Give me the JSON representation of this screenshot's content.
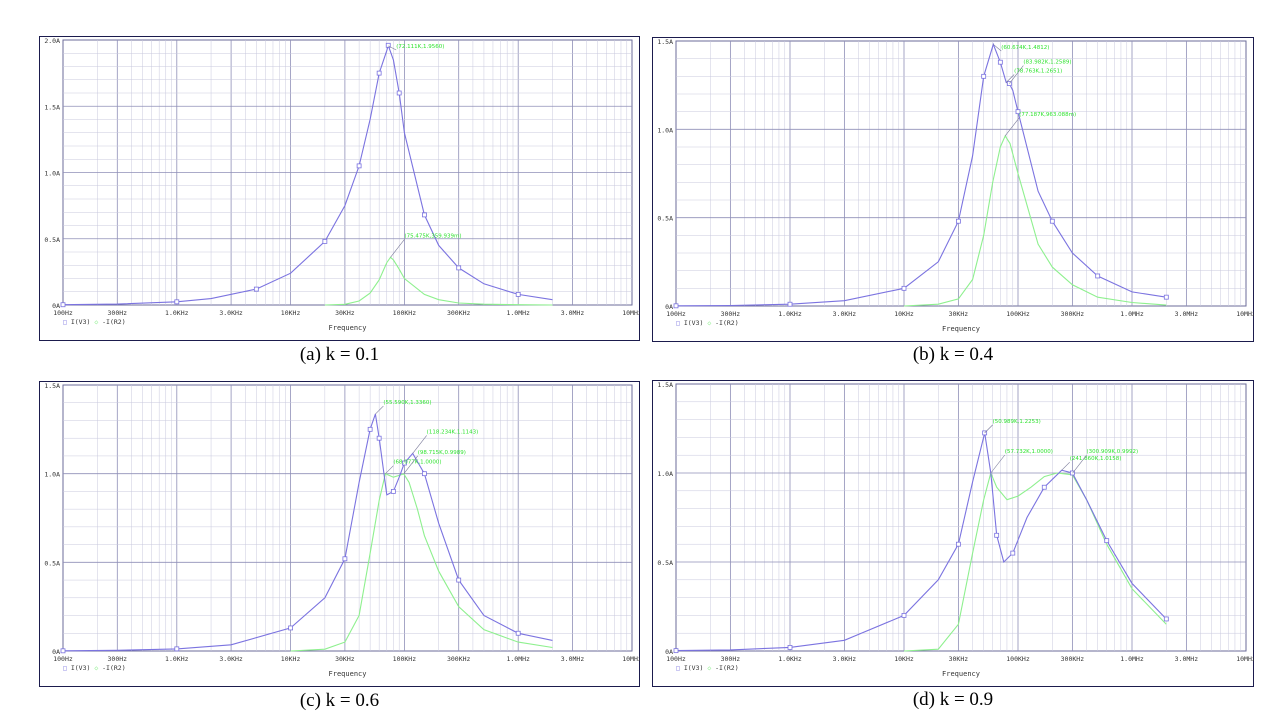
{
  "figure": {
    "freq_ticks": [
      "100Hz",
      "300Hz",
      "1.0KHz",
      "3.0KHz",
      "10KHz",
      "30KHz",
      "100KHz",
      "300KHz",
      "1.0MHz",
      "3.0MHz",
      "10MHz"
    ],
    "xlabel": "Frequency",
    "legend": [
      {
        "symbol": "□",
        "label": "I(V3)"
      },
      {
        "symbol": "◇",
        "label": "-I(R2)"
      }
    ],
    "colors": {
      "trace1": "#7b73e0",
      "trace2": "#8ef08e",
      "grid": "#8f8fb7",
      "frame": "#1b1b4d",
      "annotation": "#2fe32f",
      "axis_text": "#333333"
    }
  },
  "chart_data": [
    {
      "type": "line",
      "caption": "(a) k = 0.1",
      "x_scale": "log",
      "xlim": [
        100,
        10000000
      ],
      "ylim": [
        0,
        2.0
      ],
      "yticks": [
        0,
        0.5,
        1.0,
        1.5,
        2.0
      ],
      "ytick_labels": [
        "0A",
        "0.5A",
        "1.0A",
        "1.5A",
        "2.0A"
      ],
      "series": [
        {
          "name": "I(V3)",
          "marker": "square",
          "x": [
            100,
            300,
            1000,
            2000,
            5000,
            10000,
            20000,
            30000,
            40000,
            50000,
            60000,
            70000,
            72111,
            80000,
            90000,
            100000,
            150000,
            200000,
            300000,
            500000,
            1000000,
            2000000
          ],
          "y": [
            0.002,
            0.007,
            0.024,
            0.048,
            0.12,
            0.24,
            0.48,
            0.75,
            1.05,
            1.4,
            1.75,
            1.92,
            1.96,
            1.85,
            1.6,
            1.3,
            0.68,
            0.45,
            0.28,
            0.16,
            0.08,
            0.04
          ]
        },
        {
          "name": "-I(R2)",
          "marker": "diamond",
          "x": [
            20000,
            30000,
            40000,
            50000,
            60000,
            70000,
            75475,
            80000,
            90000,
            100000,
            150000,
            200000,
            300000,
            500000,
            1000000,
            2000000
          ],
          "y": [
            0.0,
            0.005,
            0.03,
            0.09,
            0.19,
            0.32,
            0.36,
            0.34,
            0.27,
            0.2,
            0.08,
            0.04,
            0.015,
            0.006,
            0.002,
            0.0
          ]
        }
      ],
      "annotations": [
        "(72.111K,1.9560)",
        "(75.475K,359.939m)"
      ]
    },
    {
      "type": "line",
      "caption": "(b) k = 0.4",
      "x_scale": "log",
      "xlim": [
        100,
        10000000
      ],
      "ylim": [
        0,
        1.5
      ],
      "yticks": [
        0,
        0.5,
        1.0,
        1.5
      ],
      "ytick_labels": [
        "0A",
        "0.5A",
        "1.0A",
        "1.5A"
      ],
      "series": [
        {
          "name": "I(V3)",
          "marker": "square",
          "x": [
            100,
            300,
            1000,
            3000,
            10000,
            20000,
            30000,
            40000,
            50000,
            60674,
            70000,
            78763,
            83982,
            90000,
            100000,
            150000,
            200000,
            300000,
            500000,
            1000000,
            2000000
          ],
          "y": [
            0.001,
            0.003,
            0.01,
            0.03,
            0.1,
            0.25,
            0.48,
            0.85,
            1.3,
            1.4812,
            1.38,
            1.2651,
            1.2589,
            1.22,
            1.1,
            0.65,
            0.48,
            0.3,
            0.17,
            0.08,
            0.05
          ]
        },
        {
          "name": "-I(R2)",
          "marker": "diamond",
          "x": [
            10000,
            20000,
            30000,
            40000,
            50000,
            60000,
            70000,
            77187,
            85000,
            100000,
            150000,
            200000,
            300000,
            500000,
            1000000,
            2000000
          ],
          "y": [
            0.0,
            0.01,
            0.04,
            0.15,
            0.4,
            0.7,
            0.9,
            0.963,
            0.92,
            0.75,
            0.35,
            0.22,
            0.12,
            0.05,
            0.02,
            0.005
          ]
        }
      ],
      "annotations": [
        "(60.674K,1.4812)",
        "(83.982K,1.2589)",
        "(78.763K,1.2651)",
        "(77.187K,963.088m)"
      ]
    },
    {
      "type": "line",
      "caption": "(c) k = 0.6",
      "x_scale": "log",
      "xlim": [
        100,
        10000000
      ],
      "ylim": [
        0,
        1.5
      ],
      "yticks": [
        0,
        0.5,
        1.0,
        1.5
      ],
      "ytick_labels": [
        "0A",
        "0.5A",
        "1.0A",
        "1.5A"
      ],
      "series": [
        {
          "name": "I(V3)",
          "marker": "square",
          "x": [
            100,
            300,
            1000,
            3000,
            10000,
            20000,
            30000,
            40000,
            50000,
            55590,
            60000,
            70000,
            80000,
            90000,
            100000,
            118234,
            150000,
            200000,
            300000,
            500000,
            1000000,
            2000000
          ],
          "y": [
            0.001,
            0.004,
            0.012,
            0.035,
            0.13,
            0.3,
            0.52,
            0.95,
            1.25,
            1.336,
            1.2,
            0.88,
            0.9,
            0.98,
            1.06,
            1.1143,
            1.0,
            0.72,
            0.4,
            0.2,
            0.1,
            0.06
          ]
        },
        {
          "name": "-I(R2)",
          "marker": "diamond",
          "x": [
            10000,
            20000,
            30000,
            40000,
            50000,
            60000,
            68077,
            80000,
            90000,
            98715,
            110000,
            130000,
            150000,
            200000,
            300000,
            500000,
            1000000,
            2000000
          ],
          "y": [
            0.0,
            0.01,
            0.05,
            0.2,
            0.55,
            0.85,
            1.0,
            0.98,
            0.99,
            0.9989,
            0.95,
            0.8,
            0.65,
            0.45,
            0.25,
            0.12,
            0.05,
            0.02
          ]
        }
      ],
      "annotations": [
        "(55.590K,1.3360)",
        "(118.234K,1.1143)",
        "(68.077K,1.0000)",
        "(98.715K,0.9989)"
      ]
    },
    {
      "type": "line",
      "caption": "(d) k = 0.9",
      "x_scale": "log",
      "xlim": [
        100,
        10000000
      ],
      "ylim": [
        0,
        1.5
      ],
      "yticks": [
        0,
        0.5,
        1.0,
        1.5
      ],
      "ytick_labels": [
        "0A",
        "0.5A",
        "1.0A",
        "1.5A"
      ],
      "series": [
        {
          "name": "I(V3)",
          "marker": "square",
          "x": [
            100,
            300,
            1000,
            3000,
            10000,
            20000,
            30000,
            40000,
            50989,
            57732,
            65000,
            75000,
            90000,
            120000,
            170000,
            241860,
            300000,
            400000,
            600000,
            1000000,
            2000000
          ],
          "y": [
            0.002,
            0.006,
            0.02,
            0.06,
            0.2,
            0.4,
            0.6,
            0.95,
            1.2253,
            1.0,
            0.65,
            0.5,
            0.55,
            0.75,
            0.92,
            1.0158,
            1.0,
            0.85,
            0.62,
            0.38,
            0.18
          ]
        },
        {
          "name": "-I(R2)",
          "marker": "diamond",
          "x": [
            10000,
            20000,
            30000,
            40000,
            50000,
            57732,
            65000,
            80000,
            100000,
            130000,
            170000,
            220000,
            300000,
            400000,
            600000,
            1000000,
            2000000
          ],
          "y": [
            0.0,
            0.01,
            0.15,
            0.55,
            0.85,
            1.0,
            0.92,
            0.85,
            0.87,
            0.92,
            0.98,
            1.0,
            0.99,
            0.85,
            0.6,
            0.35,
            0.15
          ]
        }
      ],
      "annotations": [
        "(50.989K,1.2253)",
        "(57.732K,1.0000)",
        "(241.860K,1.0158)",
        "(300.909K,0.9992)"
      ]
    }
  ]
}
